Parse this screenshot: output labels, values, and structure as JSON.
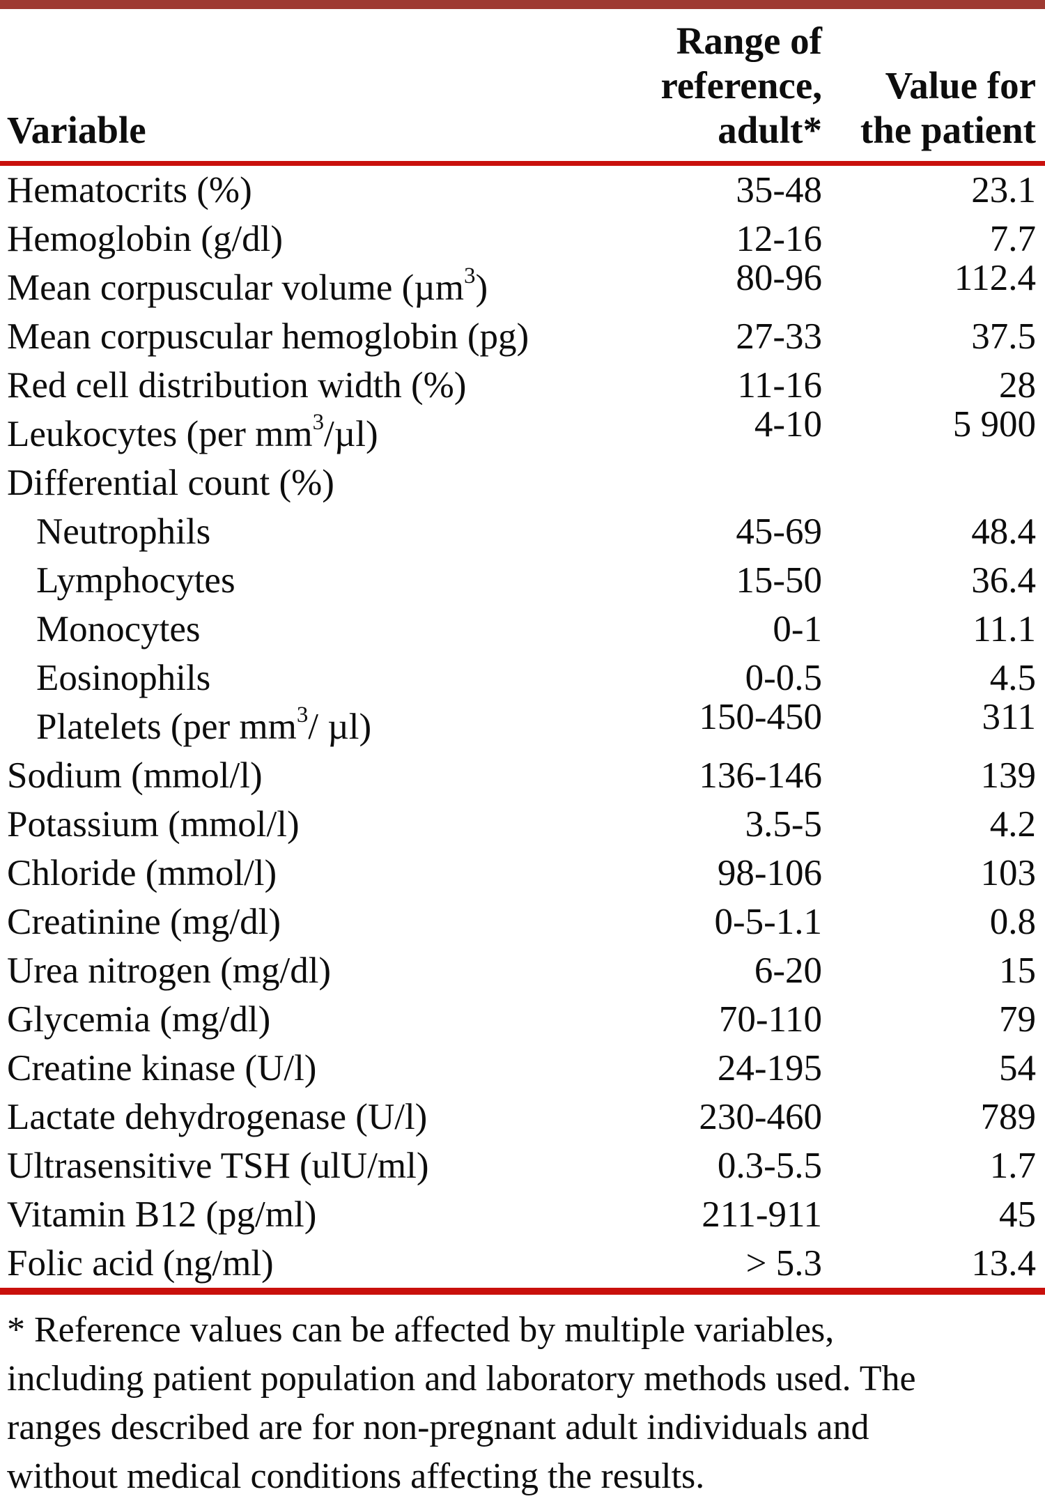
{
  "colors": {
    "top_bar_color": "#9e3a32",
    "rule_color": "#c9100c",
    "text_color": "#0d0d0d",
    "background_color": "#ffffff"
  },
  "table": {
    "headers": {
      "variable": "Variable",
      "range": "Range of\nreference,\nadult*",
      "value": "Value for\nthe patient"
    },
    "rows": [
      {
        "label": "Hematocrits (%)",
        "indent": false,
        "range": "35-48",
        "value": "23.1"
      },
      {
        "label": "Hemoglobin (g/dl)",
        "indent": false,
        "range": "12-16",
        "value": "7.7"
      },
      {
        "label": "Mean corpuscular volume (µm^3^)",
        "indent": false,
        "range": "80-96",
        "value": "112.4"
      },
      {
        "label": "Mean corpuscular hemoglobin (pg)",
        "indent": false,
        "range": "27-33",
        "value": "37.5"
      },
      {
        "label": "Red cell distribution width (%)",
        "indent": false,
        "range": "11-16",
        "value": "28"
      },
      {
        "label": "Leukocytes (per mm^3^/µl)",
        "indent": false,
        "range": "4-10",
        "value": "5 900"
      },
      {
        "label": "Differential count (%)",
        "indent": false,
        "range": "",
        "value": ""
      },
      {
        "label": "Neutrophils",
        "indent": true,
        "range": "45-69",
        "value": "48.4"
      },
      {
        "label": "Lymphocytes",
        "indent": true,
        "range": "15-50",
        "value": "36.4"
      },
      {
        "label": "Monocytes",
        "indent": true,
        "range": "0-1",
        "value": "11.1"
      },
      {
        "label": "Eosinophils",
        "indent": true,
        "range": "0-0.5",
        "value": "4.5"
      },
      {
        "label": "Platelets (per mm^3^/ µl)",
        "indent": true,
        "range": "150-450",
        "value": "311"
      },
      {
        "label": "Sodium (mmol/l)",
        "indent": false,
        "range": "136-146",
        "value": "139"
      },
      {
        "label": "Potassium (mmol/l)",
        "indent": false,
        "range": "3.5-5",
        "value": "4.2"
      },
      {
        "label": "Chloride (mmol/l)",
        "indent": false,
        "range": "98-106",
        "value": "103"
      },
      {
        "label": "Creatinine (mg/dl)",
        "indent": false,
        "range": "0-5-1.1",
        "value": "0.8"
      },
      {
        "label": "Urea nitrogen (mg/dl)",
        "indent": false,
        "range": "6-20",
        "value": "15"
      },
      {
        "label": "Glycemia (mg/dl)",
        "indent": false,
        "range": "70-110",
        "value": "79"
      },
      {
        "label": "Creatine kinase (U/l)",
        "indent": false,
        "range": "24-195",
        "value": "54"
      },
      {
        "label": "Lactate dehydrogenase (U/l)",
        "indent": false,
        "range": "230-460",
        "value": "789"
      },
      {
        "label": "Ultrasensitive TSH (ulU/ml)",
        "indent": false,
        "range": "0.3-5.5",
        "value": "1.7"
      },
      {
        "label": "Vitamin B12 (pg/ml)",
        "indent": false,
        "range": "211-911",
        "value": "45"
      },
      {
        "label": "Folic acid (ng/ml)",
        "indent": false,
        "range": "> 5.3",
        "value": "13.4"
      }
    ]
  },
  "footnote": {
    "text": "* Reference values can be affected by multiple variables,\nincluding patient population and laboratory methods used. The\nranges described are for non-pregnant adult individuals and\nwithout medical conditions affecting the results."
  }
}
